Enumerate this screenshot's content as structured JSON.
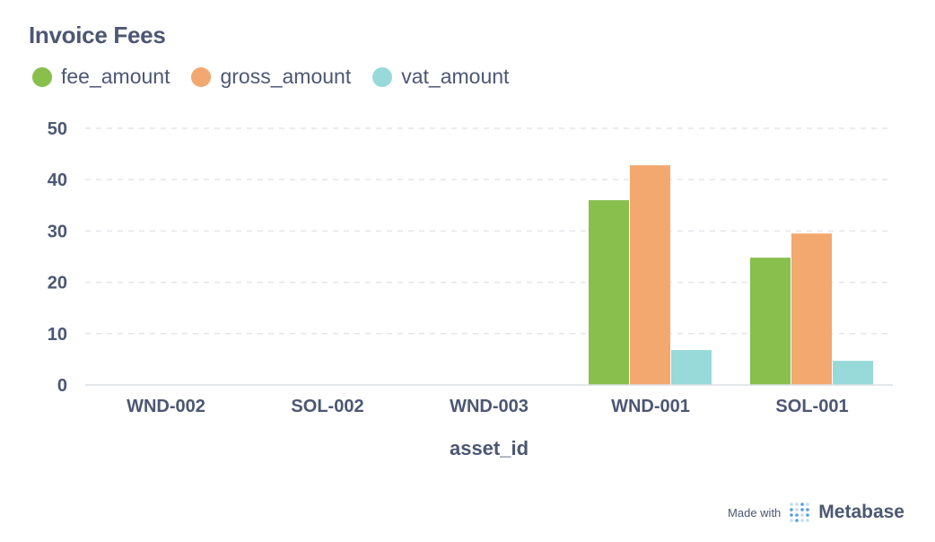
{
  "title": "Invoice Fees",
  "footer": {
    "made_with": "Made with",
    "brand": "Metabase",
    "logo_icon": "metabase-dots-icon"
  },
  "chart_data": {
    "type": "bar",
    "title": "Invoice Fees",
    "xlabel": "asset_id",
    "ylabel": "",
    "categories": [
      "WND-002",
      "SOL-002",
      "WND-003",
      "WND-001",
      "SOL-001"
    ],
    "ylim": [
      0,
      50
    ],
    "yticks": [
      0,
      10,
      20,
      30,
      40,
      50
    ],
    "grid": "horizontal-dashed",
    "legend_position": "top-left",
    "series": [
      {
        "name": "fee_amount",
        "color": "#88bf4d",
        "values": [
          0,
          0,
          0,
          36,
          24.8
        ]
      },
      {
        "name": "gross_amount",
        "color": "#f2a86f",
        "values": [
          0,
          0,
          0,
          42.8,
          29.5
        ]
      },
      {
        "name": "vat_amount",
        "color": "#98d9d9",
        "values": [
          0,
          0,
          0,
          6.8,
          4.7
        ]
      }
    ]
  }
}
